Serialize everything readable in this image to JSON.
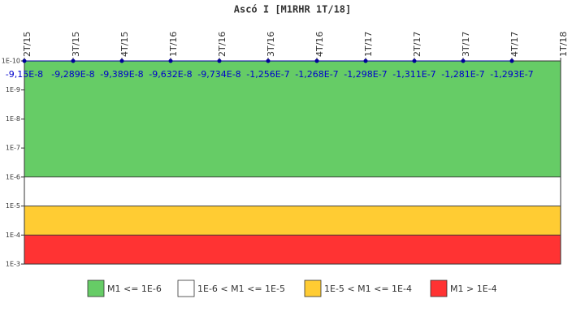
{
  "chart_data": {
    "type": "line",
    "title": "Ascó I [M1RHR 1T/18]",
    "categories": [
      "2T/15",
      "3T/15",
      "4T/15",
      "1T/16",
      "2T/16",
      "3T/16",
      "4T/16",
      "1T/17",
      "2T/17",
      "3T/17",
      "4T/17",
      "1T/18"
    ],
    "series": [
      {
        "name": "M1RHR",
        "color": "#000099",
        "values": [
          -9.15e-08,
          -9.289e-08,
          -9.389e-08,
          -9.632e-08,
          -9.734e-08,
          -1.256e-07,
          -1.268e-07,
          -1.298e-07,
          -1.311e-07,
          -1.281e-07,
          -1.293e-07,
          null
        ],
        "value_labels": [
          "-9,15E-8",
          "-9,289E-8",
          "-9,389E-8",
          "-9,632E-8",
          "-9,734E-8",
          "-1,256E-7",
          "-1,268E-7",
          "-1,298E-7",
          "-1,311E-7",
          "-1,281E-7",
          "-1,293E-7",
          null
        ]
      }
    ],
    "log_scale": true,
    "y_inverted": true,
    "ylim": [
      1e-10,
      0.001
    ],
    "yticks": [
      {
        "value": 1e-10,
        "label": "1E-10"
      },
      {
        "value": 1e-09,
        "label": "1E-9"
      },
      {
        "value": 1e-08,
        "label": "1E-8"
      },
      {
        "value": 1e-07,
        "label": "1E-7"
      },
      {
        "value": 1e-06,
        "label": "1E-6"
      },
      {
        "value": 1e-05,
        "label": "1E-5"
      },
      {
        "value": 0.0001,
        "label": "1E-4"
      },
      {
        "value": 0.001,
        "label": "1E-3"
      }
    ],
    "bands": [
      {
        "name": "M1 <= 1E-6",
        "color": "#66cc66",
        "from": 1e-10,
        "to": 1e-06
      },
      {
        "name": "1E-6 < M1 <= 1E-5",
        "color": "#ffffff",
        "from": 1e-06,
        "to": 1e-05
      },
      {
        "name": "1E-5 < M1 <= 1E-4",
        "color": "#ffcc33",
        "from": 1e-05,
        "to": 0.0001
      },
      {
        "name": "M1 > 1E-4",
        "color": "#ff3333",
        "from": 0.0001,
        "to": 0.001
      }
    ]
  }
}
